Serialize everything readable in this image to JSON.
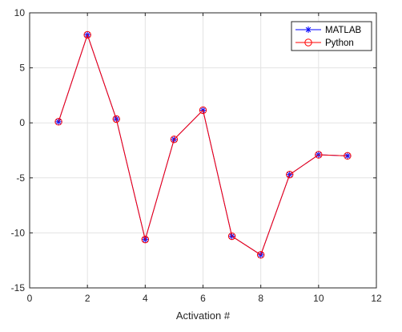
{
  "chart_data": {
    "type": "line",
    "title": "",
    "xlabel": "Activation #",
    "ylabel": "",
    "xlim": [
      0,
      12
    ],
    "ylim": [
      -15,
      10
    ],
    "xticks": [
      0,
      2,
      4,
      6,
      8,
      10,
      12
    ],
    "yticks": [
      -15,
      -10,
      -5,
      0,
      5,
      10
    ],
    "grid": true,
    "legend_position": "top-right",
    "x": [
      1,
      2,
      3,
      4,
      5,
      6,
      7,
      8,
      9,
      10,
      11
    ],
    "series": [
      {
        "name": "MATLAB",
        "values": [
          0.1,
          8.0,
          0.35,
          -10.6,
          -1.5,
          1.15,
          -10.3,
          -12.0,
          -4.7,
          -2.9,
          -3.0
        ],
        "color": "#0000ff",
        "marker": "asterisk"
      },
      {
        "name": "Python",
        "values": [
          0.1,
          8.0,
          0.35,
          -10.6,
          -1.5,
          1.15,
          -10.3,
          -12.0,
          -4.7,
          -2.9,
          -3.0
        ],
        "color": "#ff0000",
        "marker": "circle"
      }
    ]
  }
}
